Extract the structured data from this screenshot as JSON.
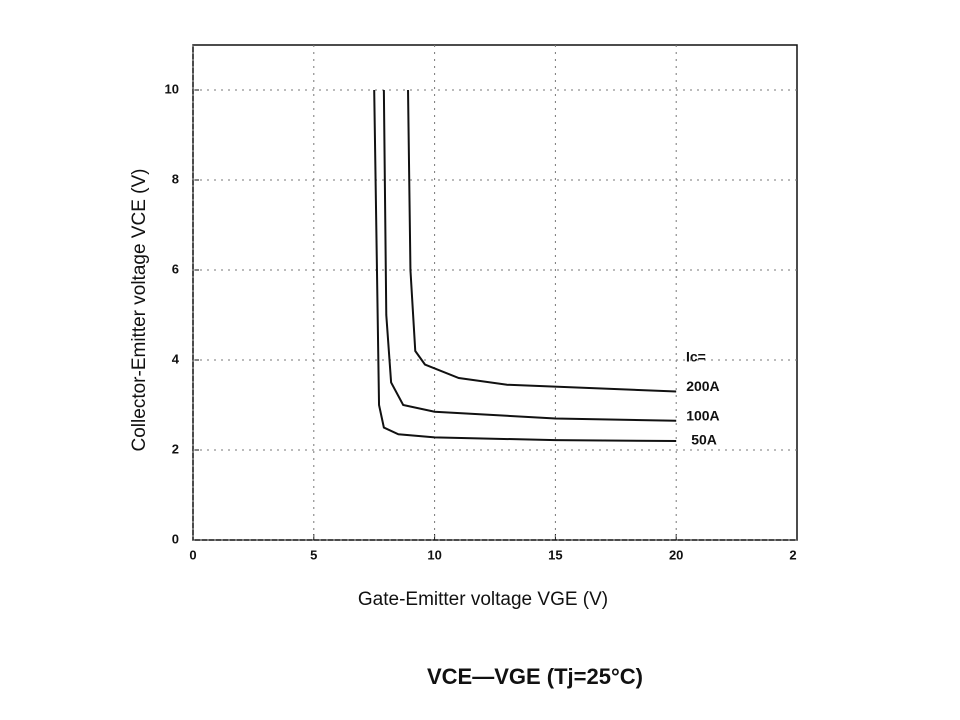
{
  "chart_data": {
    "type": "line",
    "title": "VCE—VGE (Tj=25°C)",
    "x_label": "Gate-Emitter voltage  VGE (V)",
    "y_label": "Collector-Emitter voltage VCE (V)",
    "legend_title": "Ic=",
    "edge_label": "2",
    "xlim": [
      0,
      25
    ],
    "xticks": [
      0,
      5,
      10,
      15,
      20
    ],
    "ylim": [
      0,
      11
    ],
    "yticks": [
      0,
      2,
      4,
      6,
      8,
      10
    ],
    "grid": true,
    "series": [
      {
        "name": "200A",
        "color": "#111111",
        "x": [
          8.9,
          9.0,
          9.2,
          9.6,
          11,
          13,
          20
        ],
        "values": [
          10,
          6,
          4.2,
          3.9,
          3.6,
          3.45,
          3.3
        ]
      },
      {
        "name": "100A",
        "color": "#111111",
        "x": [
          7.9,
          8.0,
          8.2,
          8.7,
          10,
          15,
          20
        ],
        "values": [
          10,
          5,
          3.5,
          3.0,
          2.85,
          2.7,
          2.65
        ]
      },
      {
        "name": "50A",
        "color": "#111111",
        "x": [
          7.5,
          7.7,
          7.9,
          8.5,
          10,
          15,
          20
        ],
        "values": [
          10,
          3,
          2.5,
          2.35,
          2.28,
          2.22,
          2.2
        ]
      }
    ]
  }
}
